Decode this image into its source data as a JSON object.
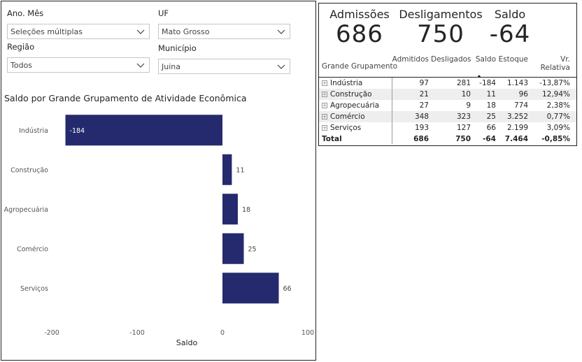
{
  "slicers": [
    {
      "label": "Ano. Mês",
      "value": "Seleções múltiplas"
    },
    {
      "label": "UF",
      "value": "Mato Grosso"
    },
    {
      "label": "Região",
      "value": "Todos"
    },
    {
      "label": "Município",
      "value": "Juina"
    }
  ],
  "chart_title": "Saldo por Grande Grupamento de Atividade Econômica",
  "chart_data": {
    "type": "bar",
    "orientation": "horizontal",
    "title": "Saldo por Grande Grupamento de Atividade Econômica",
    "categories": [
      "Indústria",
      "Construção",
      "Agropecuária",
      "Comércio",
      "Serviços"
    ],
    "values": [
      -184,
      11,
      18,
      25,
      66
    ],
    "xlabel": "Saldo",
    "ylabel": "",
    "xlim": [
      -200,
      100
    ],
    "xticks": [
      -200,
      -100,
      0,
      100
    ],
    "xtick_labels": [
      "-200",
      "-100",
      "0",
      "100"
    ],
    "grid": false,
    "bar_color": "#252a6e"
  },
  "kpis": [
    {
      "label": "Admissões",
      "value": "686"
    },
    {
      "label": "Desligamentos",
      "value": "750"
    },
    {
      "label": "Saldo",
      "value": "-64"
    }
  ],
  "table": {
    "headers": [
      "Grande Grupamento",
      "Admitidos",
      "Desligados",
      "Saldo",
      "Estoque",
      "Vr. Relativa"
    ],
    "rows": [
      [
        "Indústria",
        "97",
        "281",
        "-184",
        "1.143",
        "-13,87%"
      ],
      [
        "Construção",
        "21",
        "10",
        "11",
        "96",
        "12,94%"
      ],
      [
        "Agropecuária",
        "27",
        "9",
        "18",
        "774",
        "2,38%"
      ],
      [
        "Comércio",
        "348",
        "323",
        "25",
        "3.252",
        "0,77%"
      ],
      [
        "Serviços",
        "193",
        "127",
        "66",
        "2.199",
        "3,09%"
      ]
    ],
    "total": [
      "Total",
      "686",
      "750",
      "-64",
      "7.464",
      "-0,85%"
    ]
  }
}
